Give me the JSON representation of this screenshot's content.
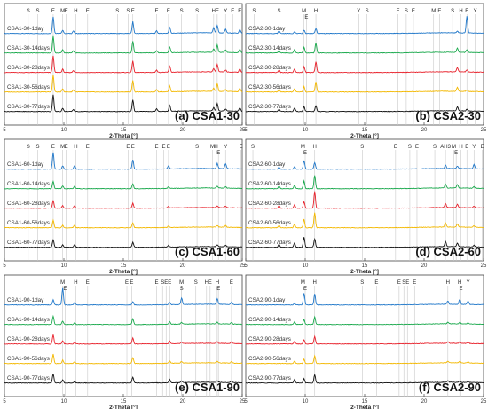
{
  "chart_data": [
    {
      "type": "line",
      "title": "(a) CSA1-30",
      "xlabel": "2-Theta [°]",
      "xlim": [
        5,
        25
      ],
      "x_ticks": [
        "5",
        "10",
        "15",
        "20",
        "25"
      ],
      "series_colors": [
        "#1f77c9",
        "#18a84b",
        "#e8212b",
        "#f3b800",
        "#111111"
      ],
      "series": [
        {
          "name": "CSA1-30-1day"
        },
        {
          "name": "CSA1-30-14days"
        },
        {
          "name": "CSA1-30-28days"
        },
        {
          "name": "CSA1-30-56days"
        },
        {
          "name": "CSA1-30-77days"
        }
      ],
      "phase_labels": [
        {
          "x": 7.0,
          "label": "S"
        },
        {
          "x": 7.8,
          "label": "S"
        },
        {
          "x": 9.1,
          "label": "E"
        },
        {
          "x": 9.9,
          "label": "M"
        },
        {
          "x": 10.2,
          "label": "E"
        },
        {
          "x": 11.0,
          "label": "H"
        },
        {
          "x": 12.0,
          "label": "E"
        },
        {
          "x": 14.5,
          "label": "S"
        },
        {
          "x": 15.4,
          "label": "S"
        },
        {
          "x": 15.8,
          "label": "E"
        },
        {
          "x": 17.8,
          "label": "E"
        },
        {
          "x": 18.8,
          "label": "E"
        },
        {
          "x": 19.9,
          "label": "S"
        },
        {
          "x": 21.2,
          "label": "S"
        },
        {
          "x": 22.6,
          "label": "H"
        },
        {
          "x": 22.9,
          "label": "E"
        },
        {
          "x": 23.6,
          "label": "Y"
        },
        {
          "x": 24.2,
          "label": "E"
        },
        {
          "x": 24.8,
          "label": "E"
        }
      ],
      "peaks": [
        {
          "name": "E",
          "x": 9.1,
          "h": [
            1.0,
            1.0,
            1.0,
            1.0,
            1.0
          ]
        },
        {
          "name": "E",
          "x": 15.8,
          "h": [
            0.7,
            0.7,
            0.7,
            0.7,
            0.7
          ]
        },
        {
          "name": "E",
          "x": 18.9,
          "h": [
            0.35,
            0.35,
            0.35,
            0.35,
            0.35
          ]
        },
        {
          "name": "E",
          "x": 22.9,
          "h": [
            0.45,
            0.45,
            0.45,
            0.45,
            0.45
          ]
        },
        {
          "name": "H",
          "x": 22.6,
          "h": [
            0.3,
            0.2,
            0.2,
            0.2,
            0.2
          ]
        },
        {
          "name": "Y",
          "x": 23.6,
          "h": [
            0.22,
            0.15,
            0.12,
            0.12,
            0.12
          ]
        },
        {
          "name": "E",
          "x": 24.8,
          "h": [
            0.22,
            0.2,
            0.2,
            0.2,
            0.2
          ]
        },
        {
          "name": "E",
          "x": 17.8,
          "h": [
            0.15,
            0.15,
            0.15,
            0.15,
            0.15
          ]
        },
        {
          "name": "H",
          "x": 10.8,
          "h": [
            0.15,
            0.12,
            0.12,
            0.12,
            0.12
          ]
        },
        {
          "name": "M",
          "x": 9.9,
          "h": [
            0.2,
            0.2,
            0.2,
            0.2,
            0.2
          ]
        }
      ]
    },
    {
      "type": "line",
      "title": "(b) CSA2-30",
      "xlabel": "2-Theta [°]",
      "xlim": [
        5,
        25
      ],
      "x_ticks": [
        "5",
        "10",
        "15",
        "20",
        "25"
      ],
      "series_colors": [
        "#1f77c9",
        "#18a84b",
        "#e8212b",
        "#f3b800",
        "#111111"
      ],
      "series": [
        {
          "name": "CSA2-30-1day"
        },
        {
          "name": "CSA2-30-14days"
        },
        {
          "name": "CSA2-30-28days"
        },
        {
          "name": "CSA2-30-56days"
        },
        {
          "name": "CSA2-30-77days"
        }
      ],
      "phase_labels": [
        {
          "x": 5.7,
          "label": "S"
        },
        {
          "x": 7.8,
          "label": "S"
        },
        {
          "x": 9.9,
          "label": "M"
        },
        {
          "x": 10.1,
          "label": "E"
        },
        {
          "x": 10.9,
          "label": "H"
        },
        {
          "x": 14.5,
          "label": "Y"
        },
        {
          "x": 15.2,
          "label": "S"
        },
        {
          "x": 17.8,
          "label": "E"
        },
        {
          "x": 18.5,
          "label": "S"
        },
        {
          "x": 19.1,
          "label": "E"
        },
        {
          "x": 20.8,
          "label": "M"
        },
        {
          "x": 21.3,
          "label": "E"
        },
        {
          "x": 22.4,
          "label": "S"
        },
        {
          "x": 23.1,
          "label": "H"
        },
        {
          "x": 23.6,
          "label": "E"
        },
        {
          "x": 24.3,
          "label": "Y"
        }
      ],
      "peaks": [
        {
          "name": "Y",
          "x": 23.6,
          "h": [
            1.0,
            0.15,
            0.12,
            0.1,
            0.1
          ]
        },
        {
          "name": "H",
          "x": 10.9,
          "h": [
            0.3,
            0.6,
            0.65,
            0.6,
            0.35
          ]
        },
        {
          "name": "M",
          "x": 9.9,
          "h": [
            0.2,
            0.35,
            0.35,
            0.35,
            0.3
          ]
        },
        {
          "name": "H",
          "x": 22.8,
          "h": [
            0.1,
            0.25,
            0.25,
            0.25,
            0.25
          ]
        },
        {
          "name": "S",
          "x": 7.8,
          "h": [
            0.15,
            0.15,
            0.15,
            0.15,
            0.15
          ]
        },
        {
          "name": "E",
          "x": 9.1,
          "h": [
            0.1,
            0.2,
            0.2,
            0.2,
            0.2
          ]
        }
      ]
    },
    {
      "type": "line",
      "title": "(c) CSA1-60",
      "xlabel": "2-Theta [°]",
      "xlim": [
        5,
        25
      ],
      "x_ticks": [
        "5",
        "10",
        "15",
        "20",
        "25"
      ],
      "series_colors": [
        "#1f77c9",
        "#18a84b",
        "#e8212b",
        "#f3b800",
        "#111111"
      ],
      "series": [
        {
          "name": "CSA1-60-1day"
        },
        {
          "name": "CSA1-60-14days"
        },
        {
          "name": "CSA1-60-28days"
        },
        {
          "name": "CSA1-60-56days"
        },
        {
          "name": "CSA1-60-77days"
        }
      ],
      "phase_labels": [
        {
          "x": 7.0,
          "label": "S"
        },
        {
          "x": 7.8,
          "label": "S"
        },
        {
          "x": 9.1,
          "label": "E"
        },
        {
          "x": 9.9,
          "label": "M"
        },
        {
          "x": 10.2,
          "label": "E"
        },
        {
          "x": 11.0,
          "label": "H"
        },
        {
          "x": 12.0,
          "label": "E"
        },
        {
          "x": 15.4,
          "label": "E"
        },
        {
          "x": 15.8,
          "label": "E"
        },
        {
          "x": 17.8,
          "label": "E"
        },
        {
          "x": 18.4,
          "label": "E"
        },
        {
          "x": 18.8,
          "label": "E"
        },
        {
          "x": 21.2,
          "label": "S"
        },
        {
          "x": 22.5,
          "label": "M"
        },
        {
          "x": 22.8,
          "label": "H"
        },
        {
          "x": 23.0,
          "label": "E"
        },
        {
          "x": 23.6,
          "label": "Y"
        },
        {
          "x": 24.9,
          "label": "E"
        }
      ],
      "peaks": [
        {
          "name": "E",
          "x": 9.1,
          "h": [
            1.0,
            0.45,
            0.45,
            0.45,
            0.45
          ]
        },
        {
          "name": "E",
          "x": 15.8,
          "h": [
            0.55,
            0.3,
            0.3,
            0.3,
            0.3
          ]
        },
        {
          "name": "H",
          "x": 10.9,
          "h": [
            0.2,
            0.15,
            0.15,
            0.15,
            0.15
          ]
        },
        {
          "name": "E",
          "x": 22.9,
          "h": [
            0.3,
            0.1,
            0.1,
            0.1,
            0.1
          ]
        },
        {
          "name": "Y",
          "x": 23.6,
          "h": [
            0.3,
            0.1,
            0.1,
            0.1,
            0.1
          ]
        },
        {
          "name": "E",
          "x": 18.8,
          "h": [
            0.2,
            0.1,
            0.1,
            0.1,
            0.1
          ]
        },
        {
          "name": "M",
          "x": 9.9,
          "h": [
            0.2,
            0.15,
            0.15,
            0.15,
            0.15
          ]
        }
      ]
    },
    {
      "type": "line",
      "title": "(d) CSA2-60",
      "xlabel": "2-Theta [°]",
      "xlim": [
        5,
        25
      ],
      "x_ticks": [
        "5",
        "10",
        "15",
        "20",
        "25"
      ],
      "series_colors": [
        "#1f77c9",
        "#18a84b",
        "#e8212b",
        "#f3b800",
        "#111111"
      ],
      "series": [
        {
          "name": "CSA2-60-1day"
        },
        {
          "name": "CSA2-60-14days"
        },
        {
          "name": "CSA2-60-28days"
        },
        {
          "name": "CSA2-60-56days"
        },
        {
          "name": "CSA2-60-77days"
        }
      ],
      "phase_labels": [
        {
          "x": 5.6,
          "label": "S"
        },
        {
          "x": 9.8,
          "label": "M"
        },
        {
          "x": 10.0,
          "label": "E"
        },
        {
          "x": 10.8,
          "label": "H"
        },
        {
          "x": 14.8,
          "label": "S"
        },
        {
          "x": 17.6,
          "label": "E"
        },
        {
          "x": 18.8,
          "label": "S"
        },
        {
          "x": 19.4,
          "label": "E"
        },
        {
          "x": 20.9,
          "label": "S"
        },
        {
          "x": 21.8,
          "label": "AH3"
        },
        {
          "x": 22.5,
          "label": "M"
        },
        {
          "x": 22.7,
          "label": "E"
        },
        {
          "x": 23.1,
          "label": "H"
        },
        {
          "x": 23.6,
          "label": "E"
        },
        {
          "x": 24.2,
          "label": "Y"
        },
        {
          "x": 24.9,
          "label": "E"
        }
      ],
      "peaks": [
        {
          "name": "H",
          "x": 10.8,
          "h": [
            0.4,
            0.8,
            1.0,
            0.9,
            0.5
          ]
        },
        {
          "name": "M",
          "x": 9.9,
          "h": [
            0.5,
            0.45,
            0.4,
            0.5,
            0.6
          ]
        },
        {
          "name": "E",
          "x": 9.1,
          "h": [
            0.15,
            0.2,
            0.2,
            0.2,
            0.25
          ]
        },
        {
          "name": "AH3",
          "x": 21.8,
          "h": [
            0.2,
            0.25,
            0.25,
            0.25,
            0.3
          ]
        },
        {
          "name": "H",
          "x": 22.8,
          "h": [
            0.15,
            0.2,
            0.2,
            0.2,
            0.2
          ]
        },
        {
          "name": "Y",
          "x": 24.2,
          "h": [
            0.25,
            0.1,
            0.1,
            0.1,
            0.1
          ]
        },
        {
          "name": "S",
          "x": 7.8,
          "h": [
            0.12,
            0.15,
            0.15,
            0.15,
            0.18
          ]
        }
      ]
    },
    {
      "type": "line",
      "title": "(e) CSA1-90",
      "xlabel": "2-Theta [°]",
      "xlim": [
        5,
        25
      ],
      "x_ticks": [
        "5",
        "10",
        "15",
        "20",
        "25"
      ],
      "series_colors": [
        "#1f77c9",
        "#18a84b",
        "#e8212b",
        "#f3b800",
        "#111111"
      ],
      "series": [
        {
          "name": "CSA1-90-1day"
        },
        {
          "name": "CSA1-90-14days"
        },
        {
          "name": "CSA1-90-28days"
        },
        {
          "name": "CSA1-90-56days"
        },
        {
          "name": "CSA1-90-77days"
        }
      ],
      "phase_labels": [
        {
          "x": 9.9,
          "label": "M"
        },
        {
          "x": 10.1,
          "label": "E"
        },
        {
          "x": 11.0,
          "label": "H"
        },
        {
          "x": 12.0,
          "label": "E"
        },
        {
          "x": 15.3,
          "label": "E"
        },
        {
          "x": 15.7,
          "label": "E"
        },
        {
          "x": 17.8,
          "label": "E"
        },
        {
          "x": 18.3,
          "label": "S"
        },
        {
          "x": 18.6,
          "label": "E"
        },
        {
          "x": 18.9,
          "label": "E"
        },
        {
          "x": 19.9,
          "label": "M"
        },
        {
          "x": 19.9,
          "label": "S"
        },
        {
          "x": 21.1,
          "label": "S"
        },
        {
          "x": 22.0,
          "label": "H"
        },
        {
          "x": 22.3,
          "label": "E"
        },
        {
          "x": 22.9,
          "label": "H"
        },
        {
          "x": 23.0,
          "label": "E"
        },
        {
          "x": 24.1,
          "label": "E"
        }
      ],
      "peaks": [
        {
          "name": "M",
          "x": 9.9,
          "h": [
            1.0,
            0.2,
            0.2,
            0.2,
            0.2
          ]
        },
        {
          "name": "E",
          "x": 9.1,
          "h": [
            0.3,
            0.5,
            0.55,
            0.55,
            0.55
          ]
        },
        {
          "name": "E",
          "x": 15.8,
          "h": [
            0.2,
            0.35,
            0.35,
            0.35,
            0.35
          ]
        },
        {
          "name": "H",
          "x": 22.9,
          "h": [
            0.35,
            0.1,
            0.1,
            0.1,
            0.1
          ]
        },
        {
          "name": "M",
          "x": 19.9,
          "h": [
            0.4,
            0.1,
            0.1,
            0.1,
            0.1
          ]
        },
        {
          "name": "E",
          "x": 18.9,
          "h": [
            0.15,
            0.15,
            0.15,
            0.15,
            0.2
          ]
        },
        {
          "name": "H",
          "x": 10.9,
          "h": [
            0.15,
            0.1,
            0.1,
            0.1,
            0.1
          ]
        },
        {
          "name": "E",
          "x": 24.1,
          "h": [
            0.15,
            0.1,
            0.1,
            0.1,
            0.1
          ]
        }
      ]
    },
    {
      "type": "line",
      "title": "(f) CSA2-90",
      "xlabel": "2-Theta [°]",
      "xlim": [
        5,
        25
      ],
      "x_ticks": [
        "5",
        "10",
        "15",
        "20",
        "25"
      ],
      "series_colors": [
        "#1f77c9",
        "#18a84b",
        "#e8212b",
        "#f3b800",
        "#111111"
      ],
      "series": [
        {
          "name": "CSA2-90-1day"
        },
        {
          "name": "CSA2-90-14days"
        },
        {
          "name": "CSA2-90-28days"
        },
        {
          "name": "CSA2-90-56days"
        },
        {
          "name": "CSA2-90-77days"
        }
      ],
      "phase_labels": [
        {
          "x": 9.8,
          "label": "M"
        },
        {
          "x": 10.0,
          "label": "E"
        },
        {
          "x": 10.8,
          "label": "H"
        },
        {
          "x": 14.8,
          "label": "S"
        },
        {
          "x": 16.0,
          "label": "E"
        },
        {
          "x": 17.9,
          "label": "E"
        },
        {
          "x": 18.3,
          "label": "S"
        },
        {
          "x": 18.6,
          "label": "E"
        },
        {
          "x": 19.2,
          "label": "E"
        },
        {
          "x": 22.0,
          "label": "H"
        },
        {
          "x": 23.0,
          "label": "H"
        },
        {
          "x": 23.1,
          "label": "E"
        },
        {
          "x": 23.7,
          "label": "Y"
        }
      ],
      "peaks": [
        {
          "name": "M",
          "x": 9.9,
          "h": [
            0.7,
            0.3,
            0.25,
            0.25,
            0.25
          ]
        },
        {
          "name": "H",
          "x": 10.8,
          "h": [
            0.65,
            0.45,
            0.45,
            0.45,
            0.5
          ]
        },
        {
          "name": "E",
          "x": 9.1,
          "h": [
            0.1,
            0.15,
            0.15,
            0.15,
            0.2
          ]
        },
        {
          "name": "H",
          "x": 22.0,
          "h": [
            0.2,
            0.1,
            0.1,
            0.1,
            0.1
          ]
        },
        {
          "name": "H",
          "x": 23.0,
          "h": [
            0.3,
            0.1,
            0.1,
            0.1,
            0.1
          ]
        },
        {
          "name": "Y",
          "x": 23.7,
          "h": [
            0.2,
            0.08,
            0.08,
            0.08,
            0.08
          ]
        }
      ]
    }
  ]
}
